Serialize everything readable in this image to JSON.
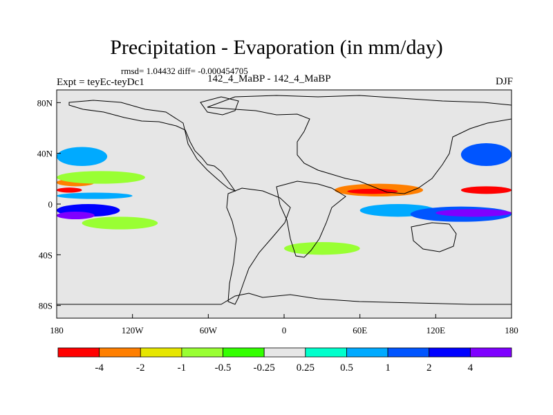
{
  "chart_data": {
    "type": "heatmap",
    "title": "Precipitation - Evaporation (in mm/day)",
    "stats": "rmsd= 1.04432 diff= -0.000454705",
    "left_label": "Expt = teyEc-teyDc1",
    "center_label": "142_4_MaBP - 142_4_MaBP",
    "right_label": "DJF",
    "xlim": [
      -180,
      180
    ],
    "ylim": [
      -90,
      90
    ],
    "x_ticks": [
      {
        "value": -180,
        "label": "180"
      },
      {
        "value": -120,
        "label": "120W"
      },
      {
        "value": -60,
        "label": "60W"
      },
      {
        "value": 0,
        "label": "0"
      },
      {
        "value": 60,
        "label": "60E"
      },
      {
        "value": 120,
        "label": "120E"
      },
      {
        "value": 180,
        "label": "180"
      }
    ],
    "y_ticks": [
      {
        "value": 80,
        "label": "80N"
      },
      {
        "value": 40,
        "label": "40N"
      },
      {
        "value": 0,
        "label": "0"
      },
      {
        "value": -40,
        "label": "40S"
      },
      {
        "value": -80,
        "label": "80S"
      }
    ],
    "levels": [
      "-4",
      "-2",
      "-1",
      "-0.5",
      "-0.25",
      "0.25",
      "0.5",
      "1",
      "2",
      "4"
    ],
    "colors": [
      "#ff0000",
      "#ff7f00",
      "#e6e600",
      "#99ff33",
      "#33ff00",
      "#e6e6e6",
      "#00ffcc",
      "#00aaff",
      "#0055ff",
      "#0000ff",
      "#7f00ff"
    ],
    "bands": [
      {
        "lon": [
          -180,
          -150
        ],
        "lat": [
          14,
          20
        ],
        "color": "#ff7f00"
      },
      {
        "lon": [
          -180,
          -160
        ],
        "lat": [
          9,
          13
        ],
        "color": "#ff0000"
      },
      {
        "lon": [
          -180,
          -110
        ],
        "lat": [
          16,
          26
        ],
        "color": "#99ff33"
      },
      {
        "lon": [
          -180,
          -120
        ],
        "lat": [
          4,
          9
        ],
        "color": "#00aaff"
      },
      {
        "lon": [
          -180,
          -130
        ],
        "lat": [
          -10,
          0
        ],
        "color": "#0000ff"
      },
      {
        "lon": [
          -180,
          -150
        ],
        "lat": [
          -12,
          -6
        ],
        "color": "#7f00ff"
      },
      {
        "lon": [
          -160,
          -100
        ],
        "lat": [
          -20,
          -10
        ],
        "color": "#99ff33"
      },
      {
        "lon": [
          -180,
          -140
        ],
        "lat": [
          30,
          45
        ],
        "color": "#00aaff"
      },
      {
        "lon": [
          40,
          110
        ],
        "lat": [
          6,
          16
        ],
        "color": "#ff7f00"
      },
      {
        "lon": [
          50,
          90
        ],
        "lat": [
          8,
          12
        ],
        "color": "#ff0000"
      },
      {
        "lon": [
          140,
          180
        ],
        "lat": [
          8,
          14
        ],
        "color": "#ff0000"
      },
      {
        "lon": [
          60,
          120
        ],
        "lat": [
          -10,
          0
        ],
        "color": "#00aaff"
      },
      {
        "lon": [
          100,
          180
        ],
        "lat": [
          -14,
          -2
        ],
        "color": "#0055ff"
      },
      {
        "lon": [
          120,
          180
        ],
        "lat": [
          -10,
          -4
        ],
        "color": "#7f00ff"
      },
      {
        "lon": [
          140,
          180
        ],
        "lat": [
          30,
          48
        ],
        "color": "#0055ff"
      },
      {
        "lon": [
          0,
          60
        ],
        "lat": [
          -40,
          -30
        ],
        "color": "#99ff33"
      }
    ]
  }
}
